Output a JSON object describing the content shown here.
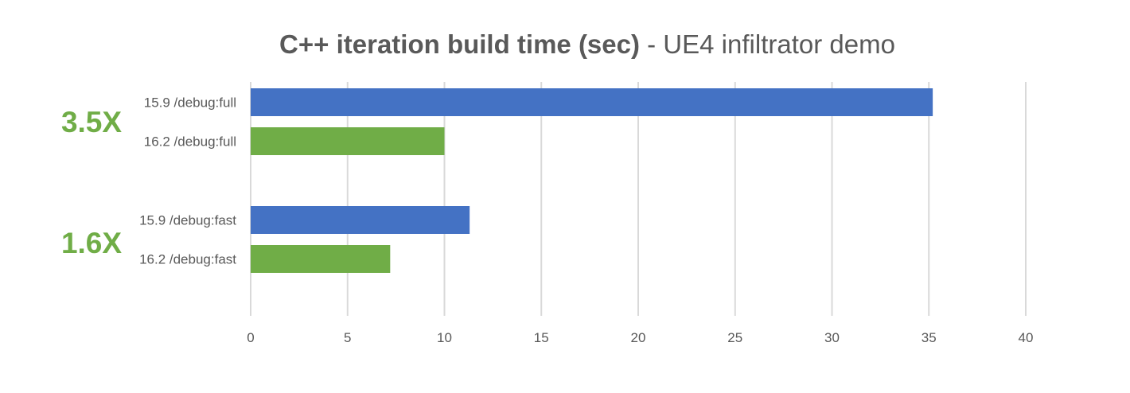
{
  "chart_data": {
    "type": "bar",
    "orientation": "horizontal",
    "title_bold": "C++ iteration build time (sec)",
    "title_rest": " - UE4 infiltrator demo",
    "xlabel": "",
    "ylabel": "",
    "xlim": [
      0,
      40
    ],
    "x_ticks": [
      "0",
      "5",
      "10",
      "15",
      "20",
      "25",
      "30",
      "35",
      "40"
    ],
    "grid": true,
    "legend": "none",
    "groups": [
      {
        "callout": "3.5X",
        "bars": [
          {
            "label": "15.9 /debug:full",
            "value": 35.2,
            "color": "#4472C4"
          },
          {
            "label": "16.2 /debug:full",
            "value": 10.0,
            "color": "#70AD47"
          }
        ]
      },
      {
        "callout": "1.6X",
        "bars": [
          {
            "label": "15.9 /debug:fast",
            "value": 11.3,
            "color": "#4472C4"
          },
          {
            "label": "16.2 /debug:fast",
            "value": 7.2,
            "color": "#70AD47"
          }
        ]
      }
    ],
    "colors": {
      "callout": "#70AD47",
      "text": "#595959",
      "grid": "#D9D9D9"
    }
  }
}
